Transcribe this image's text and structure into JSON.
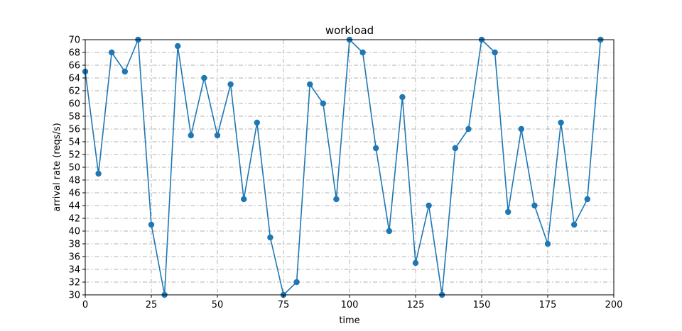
{
  "chart_data": {
    "type": "line",
    "title": "workload",
    "xlabel": "time",
    "ylabel": "arrival rate (reqs/s)",
    "xlim": [
      0,
      200
    ],
    "ylim": [
      30,
      70
    ],
    "x_ticks": [
      0,
      25,
      50,
      75,
      100,
      125,
      150,
      175,
      200
    ],
    "y_ticks": [
      30,
      32,
      34,
      36,
      38,
      40,
      42,
      44,
      46,
      48,
      50,
      52,
      54,
      56,
      58,
      60,
      62,
      64,
      66,
      68,
      70
    ],
    "grid": true,
    "line_color": "#1f77b4",
    "marker": "circle",
    "series": [
      {
        "x": [
          0,
          5,
          10,
          15,
          20,
          25,
          30,
          35,
          40,
          45,
          50,
          55,
          60,
          65,
          70,
          75,
          80,
          85,
          90,
          95,
          100,
          105,
          110,
          115,
          120,
          125,
          130,
          135,
          140,
          145,
          150,
          155,
          160,
          165,
          170,
          175,
          180,
          185,
          190,
          195
        ],
        "values": [
          65,
          49,
          68,
          65,
          70,
          41,
          30,
          69,
          55,
          64,
          55,
          63,
          45,
          57,
          39,
          30,
          32,
          63,
          60,
          45,
          70,
          68,
          53,
          40,
          61,
          35,
          44,
          30,
          53,
          56,
          70,
          68,
          43,
          56,
          44,
          38,
          57,
          41,
          45,
          70
        ]
      }
    ]
  }
}
